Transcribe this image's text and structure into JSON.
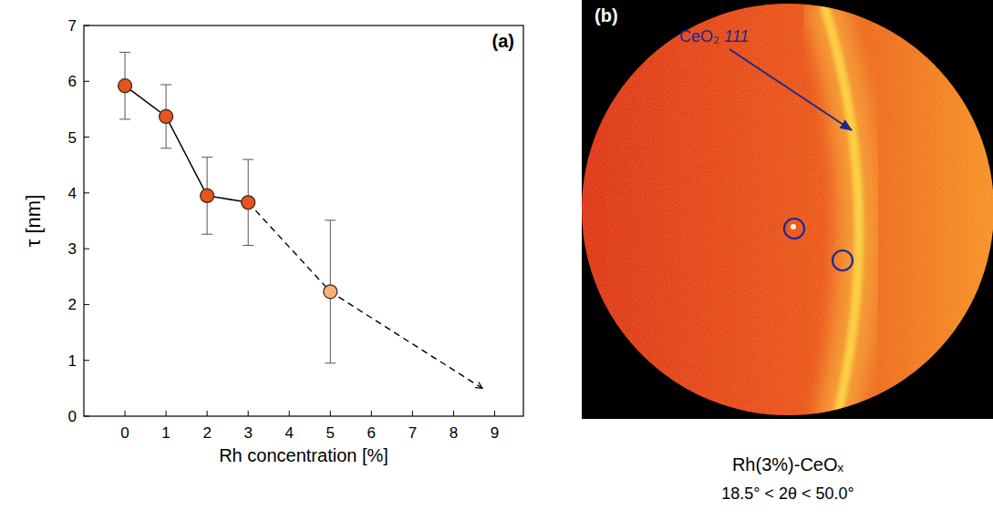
{
  "chart_data": {
    "type": "scatter",
    "panel_label": "(a)",
    "x_label": "Rh concentration [%]",
    "y_label": "τ [nm]",
    "xlim": [
      -1,
      9.7
    ],
    "xticks": [
      0,
      1,
      2,
      3,
      4,
      5,
      6,
      7,
      8,
      9
    ],
    "ylim": [
      0,
      7
    ],
    "yticks": [
      0,
      1,
      2,
      3,
      4,
      5,
      6,
      7
    ],
    "series": [
      {
        "x": [
          0,
          1,
          2,
          3
        ],
        "values": [
          5.92,
          5.37,
          3.95,
          3.83
        ],
        "errors": [
          0.6,
          0.57,
          0.69,
          0.77
        ],
        "color": "#e8541e",
        "marker": "circle",
        "line_style": "solid"
      },
      {
        "x": [
          5
        ],
        "values": [
          2.23
        ],
        "errors": [
          1.28
        ],
        "color": "#f6b27a",
        "marker": "circle"
      }
    ],
    "trend": {
      "x": [
        3,
        5,
        8.7
      ],
      "values": [
        3.83,
        2.23,
        0.5
      ],
      "line_style": "dashed"
    }
  },
  "image_panel": {
    "panel_label": "(b)",
    "annotation": {
      "label": "CeO₂",
      "reflection": "111"
    },
    "caption": "Rh(3%)-CeOₓ",
    "range_label": "18.5° < 2θ < 50.0°"
  }
}
